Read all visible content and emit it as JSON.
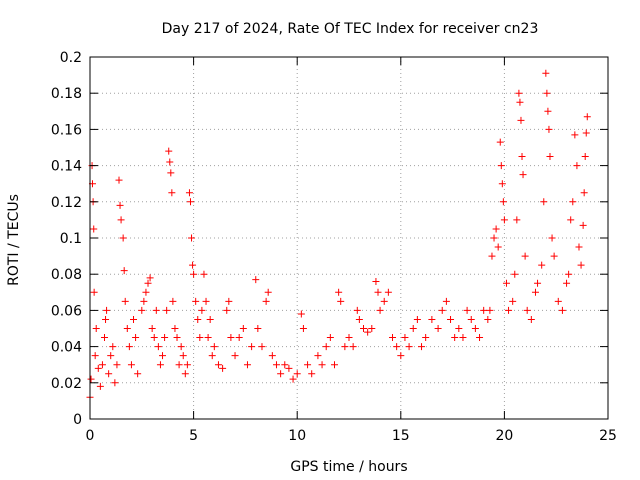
{
  "chart_data": {
    "type": "scatter",
    "title": "Day 217 of 2024, Rate Of TEC Index for receiver cn23",
    "xlabel": "GPS time / hours",
    "ylabel": "ROTI / TECUs",
    "xlim": [
      0,
      25
    ],
    "ylim": [
      0,
      0.2
    ],
    "xticks": [
      0,
      5,
      10,
      15,
      20,
      25
    ],
    "yticks": [
      0,
      0.02,
      0.04,
      0.06,
      0.08,
      0.1,
      0.12,
      0.14,
      0.16,
      0.18,
      0.2
    ],
    "xtick_labels": [
      "0",
      "5",
      "10",
      "15",
      "20",
      "25"
    ],
    "ytick_labels": [
      "0",
      "0.02",
      "0.04",
      "0.06",
      "0.08",
      "0.1",
      "0.12",
      "0.14",
      "0.16",
      "0.18",
      "0.2"
    ],
    "grid": true,
    "marker": "plus",
    "color": "#ff0000",
    "series": [
      {
        "points": [
          [
            0.0,
            0.012
          ],
          [
            0.05,
            0.022
          ],
          [
            0.1,
            0.14
          ],
          [
            0.12,
            0.13
          ],
          [
            0.15,
            0.12
          ],
          [
            0.18,
            0.105
          ],
          [
            0.2,
            0.07
          ],
          [
            0.25,
            0.035
          ],
          [
            0.3,
            0.05
          ],
          [
            0.4,
            0.028
          ],
          [
            0.5,
            0.018
          ],
          [
            0.6,
            0.03
          ],
          [
            0.7,
            0.045
          ],
          [
            0.75,
            0.055
          ],
          [
            0.8,
            0.06
          ],
          [
            0.9,
            0.025
          ],
          [
            1.0,
            0.035
          ],
          [
            1.1,
            0.04
          ],
          [
            1.2,
            0.02
          ],
          [
            1.3,
            0.03
          ],
          [
            1.4,
            0.132
          ],
          [
            1.45,
            0.118
          ],
          [
            1.5,
            0.11
          ],
          [
            1.6,
            0.1
          ],
          [
            1.65,
            0.082
          ],
          [
            1.7,
            0.065
          ],
          [
            1.8,
            0.05
          ],
          [
            1.9,
            0.04
          ],
          [
            2.0,
            0.03
          ],
          [
            2.1,
            0.055
          ],
          [
            2.2,
            0.045
          ],
          [
            2.3,
            0.025
          ],
          [
            2.5,
            0.06
          ],
          [
            2.6,
            0.065
          ],
          [
            2.7,
            0.07
          ],
          [
            2.8,
            0.075
          ],
          [
            2.9,
            0.078
          ],
          [
            3.0,
            0.05
          ],
          [
            3.1,
            0.045
          ],
          [
            3.2,
            0.06
          ],
          [
            3.3,
            0.04
          ],
          [
            3.4,
            0.03
          ],
          [
            3.5,
            0.035
          ],
          [
            3.6,
            0.045
          ],
          [
            3.7,
            0.06
          ],
          [
            3.8,
            0.148
          ],
          [
            3.85,
            0.142
          ],
          [
            3.9,
            0.136
          ],
          [
            3.95,
            0.125
          ],
          [
            4.0,
            0.065
          ],
          [
            4.1,
            0.05
          ],
          [
            4.2,
            0.045
          ],
          [
            4.3,
            0.03
          ],
          [
            4.4,
            0.04
          ],
          [
            4.5,
            0.035
          ],
          [
            4.6,
            0.025
          ],
          [
            4.7,
            0.03
          ],
          [
            4.8,
            0.125
          ],
          [
            4.85,
            0.12
          ],
          [
            4.9,
            0.1
          ],
          [
            4.95,
            0.085
          ],
          [
            5.0,
            0.08
          ],
          [
            5.1,
            0.065
          ],
          [
            5.2,
            0.055
          ],
          [
            5.3,
            0.045
          ],
          [
            5.4,
            0.06
          ],
          [
            5.5,
            0.08
          ],
          [
            5.6,
            0.065
          ],
          [
            5.7,
            0.045
          ],
          [
            5.8,
            0.055
          ],
          [
            5.9,
            0.035
          ],
          [
            6.0,
            0.04
          ],
          [
            6.2,
            0.03
          ],
          [
            6.4,
            0.028
          ],
          [
            6.6,
            0.06
          ],
          [
            6.7,
            0.065
          ],
          [
            6.8,
            0.045
          ],
          [
            7.0,
            0.035
          ],
          [
            7.2,
            0.045
          ],
          [
            7.4,
            0.05
          ],
          [
            7.6,
            0.03
          ],
          [
            7.8,
            0.04
          ],
          [
            8.0,
            0.077
          ],
          [
            8.1,
            0.05
          ],
          [
            8.3,
            0.04
          ],
          [
            8.5,
            0.065
          ],
          [
            8.6,
            0.07
          ],
          [
            8.8,
            0.035
          ],
          [
            9.0,
            0.03
          ],
          [
            9.2,
            0.025
          ],
          [
            9.4,
            0.03
          ],
          [
            9.6,
            0.028
          ],
          [
            9.8,
            0.022
          ],
          [
            10.0,
            0.025
          ],
          [
            10.2,
            0.058
          ],
          [
            10.3,
            0.05
          ],
          [
            10.5,
            0.03
          ],
          [
            10.7,
            0.025
          ],
          [
            11.0,
            0.035
          ],
          [
            11.2,
            0.03
          ],
          [
            11.4,
            0.04
          ],
          [
            11.6,
            0.045
          ],
          [
            11.8,
            0.03
          ],
          [
            12.0,
            0.07
          ],
          [
            12.1,
            0.065
          ],
          [
            12.3,
            0.04
          ],
          [
            12.5,
            0.045
          ],
          [
            12.7,
            0.04
          ],
          [
            12.9,
            0.06
          ],
          [
            13.0,
            0.055
          ],
          [
            13.2,
            0.05
          ],
          [
            13.4,
            0.048
          ],
          [
            13.6,
            0.05
          ],
          [
            13.8,
            0.076
          ],
          [
            13.9,
            0.07
          ],
          [
            14.0,
            0.06
          ],
          [
            14.2,
            0.065
          ],
          [
            14.4,
            0.07
          ],
          [
            14.6,
            0.045
          ],
          [
            14.8,
            0.04
          ],
          [
            15.0,
            0.035
          ],
          [
            15.2,
            0.045
          ],
          [
            15.4,
            0.04
          ],
          [
            15.6,
            0.05
          ],
          [
            15.8,
            0.055
          ],
          [
            16.0,
            0.04
          ],
          [
            16.2,
            0.045
          ],
          [
            16.5,
            0.055
          ],
          [
            16.8,
            0.05
          ],
          [
            17.0,
            0.06
          ],
          [
            17.2,
            0.065
          ],
          [
            17.4,
            0.055
          ],
          [
            17.6,
            0.045
          ],
          [
            17.8,
            0.05
          ],
          [
            18.0,
            0.045
          ],
          [
            18.2,
            0.06
          ],
          [
            18.4,
            0.055
          ],
          [
            18.6,
            0.05
          ],
          [
            18.8,
            0.045
          ],
          [
            19.0,
            0.06
          ],
          [
            19.2,
            0.055
          ],
          [
            19.3,
            0.06
          ],
          [
            19.4,
            0.09
          ],
          [
            19.5,
            0.1
          ],
          [
            19.6,
            0.105
          ],
          [
            19.7,
            0.095
          ],
          [
            19.8,
            0.153
          ],
          [
            19.85,
            0.14
          ],
          [
            19.9,
            0.13
          ],
          [
            19.95,
            0.12
          ],
          [
            20.0,
            0.11
          ],
          [
            20.1,
            0.075
          ],
          [
            20.2,
            0.06
          ],
          [
            20.4,
            0.065
          ],
          [
            20.5,
            0.08
          ],
          [
            20.6,
            0.11
          ],
          [
            20.7,
            0.18
          ],
          [
            20.75,
            0.175
          ],
          [
            20.8,
            0.165
          ],
          [
            20.85,
            0.145
          ],
          [
            20.9,
            0.135
          ],
          [
            21.0,
            0.09
          ],
          [
            21.1,
            0.06
          ],
          [
            21.3,
            0.055
          ],
          [
            21.5,
            0.07
          ],
          [
            21.6,
            0.075
          ],
          [
            21.8,
            0.085
          ],
          [
            21.9,
            0.12
          ],
          [
            22.0,
            0.191
          ],
          [
            22.05,
            0.18
          ],
          [
            22.1,
            0.17
          ],
          [
            22.15,
            0.16
          ],
          [
            22.2,
            0.145
          ],
          [
            22.3,
            0.1
          ],
          [
            22.4,
            0.09
          ],
          [
            22.6,
            0.065
          ],
          [
            22.8,
            0.06
          ],
          [
            23.0,
            0.075
          ],
          [
            23.1,
            0.08
          ],
          [
            23.2,
            0.11
          ],
          [
            23.3,
            0.12
          ],
          [
            23.4,
            0.157
          ],
          [
            23.5,
            0.14
          ],
          [
            23.6,
            0.095
          ],
          [
            23.7,
            0.085
          ],
          [
            23.8,
            0.107
          ],
          [
            23.85,
            0.125
          ],
          [
            23.9,
            0.145
          ],
          [
            23.95,
            0.158
          ],
          [
            24.0,
            0.167
          ]
        ]
      }
    ]
  }
}
